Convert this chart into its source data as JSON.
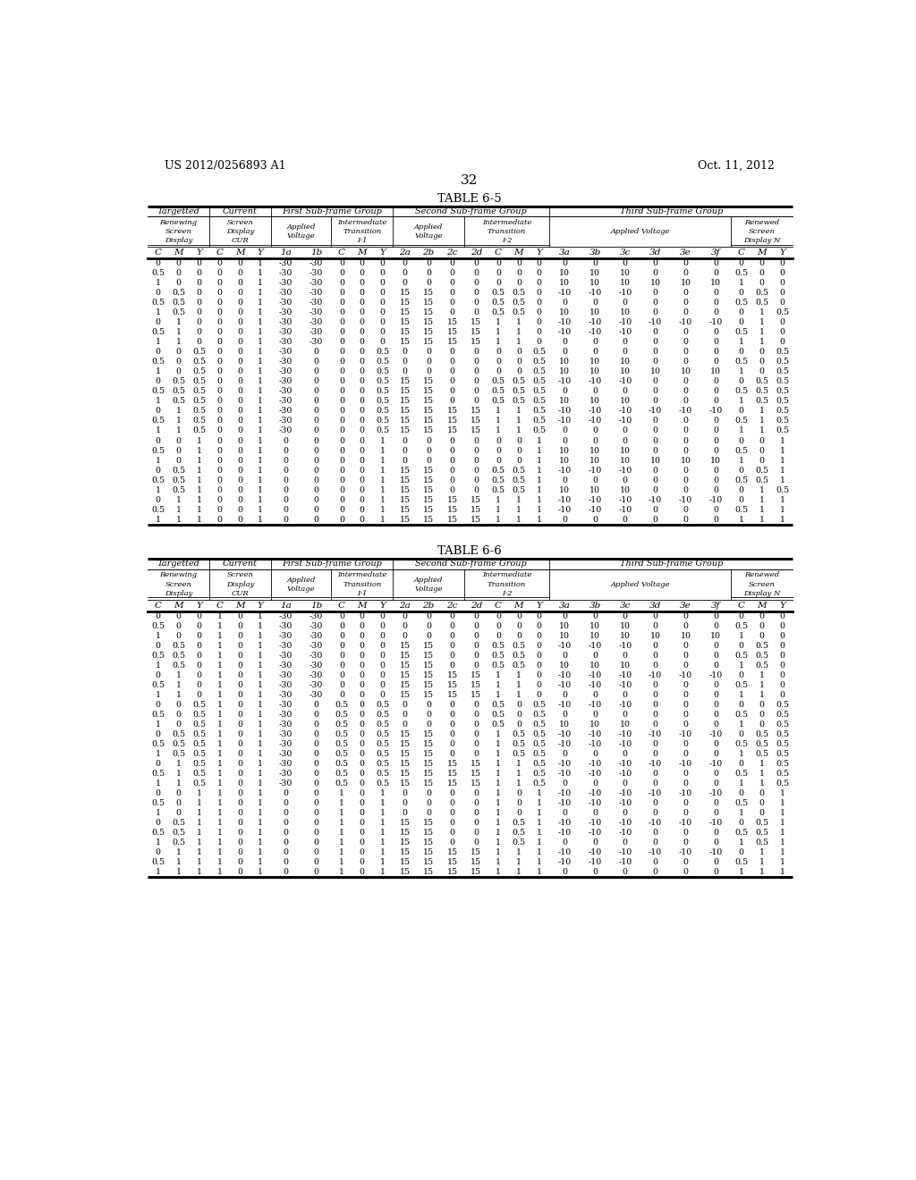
{
  "page_header_left": "US 2012/0256893 A1",
  "page_header_right": "Oct. 11, 2012",
  "page_number": "32",
  "table1_title": "TABLE 6-5",
  "table2_title": "TABLE 6-6",
  "col_names": [
    "C",
    "M",
    "Y",
    "C",
    "M",
    "Y",
    "1a",
    "1b",
    "C",
    "M",
    "Y",
    "2a",
    "2b",
    "2c",
    "2d",
    "C",
    "M",
    "Y",
    "3a",
    "3b",
    "3c",
    "3d",
    "3e",
    "3f",
    "C",
    "M",
    "Y"
  ],
  "table1_data": [
    [
      "0",
      "0",
      "0",
      "0",
      "0",
      "1",
      "-30",
      "-30",
      "0",
      "0",
      "0",
      "0",
      "0",
      "0",
      "0",
      "0",
      "0",
      "0",
      "0",
      "0",
      "0",
      "0",
      "0",
      "0",
      "0",
      "0",
      "0"
    ],
    [
      "0.5",
      "0",
      "0",
      "0",
      "0",
      "1",
      "-30",
      "-30",
      "0",
      "0",
      "0",
      "0",
      "0",
      "0",
      "0",
      "0",
      "0",
      "0",
      "10",
      "10",
      "10",
      "0",
      "0",
      "0",
      "0.5",
      "0",
      "0"
    ],
    [
      "1",
      "0",
      "0",
      "0",
      "0",
      "1",
      "-30",
      "-30",
      "0",
      "0",
      "0",
      "0",
      "0",
      "0",
      "0",
      "0",
      "0",
      "0",
      "10",
      "10",
      "10",
      "10",
      "10",
      "10",
      "1",
      "0",
      "0"
    ],
    [
      "0",
      "0.5",
      "0",
      "0",
      "0",
      "1",
      "-30",
      "-30",
      "0",
      "0",
      "0",
      "15",
      "15",
      "0",
      "0",
      "0.5",
      "0.5",
      "0",
      "-10",
      "-10",
      "-10",
      "0",
      "0",
      "0",
      "0",
      "0.5",
      "0"
    ],
    [
      "0.5",
      "0.5",
      "0",
      "0",
      "0",
      "1",
      "-30",
      "-30",
      "0",
      "0",
      "0",
      "15",
      "15",
      "0",
      "0",
      "0.5",
      "0.5",
      "0",
      "0",
      "0",
      "0",
      "0",
      "0",
      "0",
      "0.5",
      "0.5",
      "0"
    ],
    [
      "1",
      "0.5",
      "0",
      "0",
      "0",
      "1",
      "-30",
      "-30",
      "0",
      "0",
      "0",
      "15",
      "15",
      "0",
      "0",
      "0.5",
      "0.5",
      "0",
      "10",
      "10",
      "10",
      "0",
      "0",
      "0",
      "0",
      "1",
      "0.5"
    ],
    [
      "0",
      "1",
      "0",
      "0",
      "0",
      "1",
      "-30",
      "-30",
      "0",
      "0",
      "0",
      "15",
      "15",
      "15",
      "15",
      "1",
      "1",
      "0",
      "-10",
      "-10",
      "-10",
      "-10",
      "-10",
      "-10",
      "0",
      "1",
      "0"
    ],
    [
      "0.5",
      "1",
      "0",
      "0",
      "0",
      "1",
      "-30",
      "-30",
      "0",
      "0",
      "0",
      "15",
      "15",
      "15",
      "15",
      "1",
      "1",
      "0",
      "-10",
      "-10",
      "-10",
      "0",
      "0",
      "0",
      "0.5",
      "1",
      "0"
    ],
    [
      "1",
      "1",
      "0",
      "0",
      "0",
      "1",
      "-30",
      "-30",
      "0",
      "0",
      "0",
      "15",
      "15",
      "15",
      "15",
      "1",
      "1",
      "0",
      "0",
      "0",
      "0",
      "0",
      "0",
      "0",
      "1",
      "1",
      "0"
    ],
    [
      "0",
      "0",
      "0.5",
      "0",
      "0",
      "1",
      "-30",
      "0",
      "0",
      "0",
      "0.5",
      "0",
      "0",
      "0",
      "0",
      "0",
      "0",
      "0.5",
      "0",
      "0",
      "0",
      "0",
      "0",
      "0",
      "0",
      "0",
      "0.5"
    ],
    [
      "0.5",
      "0",
      "0.5",
      "0",
      "0",
      "1",
      "-30",
      "0",
      "0",
      "0",
      "0.5",
      "0",
      "0",
      "0",
      "0",
      "0",
      "0",
      "0.5",
      "10",
      "10",
      "10",
      "0",
      "0",
      "0",
      "0.5",
      "0",
      "0.5"
    ],
    [
      "1",
      "0",
      "0.5",
      "0",
      "0",
      "1",
      "-30",
      "0",
      "0",
      "0",
      "0.5",
      "0",
      "0",
      "0",
      "0",
      "0",
      "0",
      "0.5",
      "10",
      "10",
      "10",
      "10",
      "10",
      "10",
      "1",
      "0",
      "0.5"
    ],
    [
      "0",
      "0.5",
      "0.5",
      "0",
      "0",
      "1",
      "-30",
      "0",
      "0",
      "0",
      "0.5",
      "15",
      "15",
      "0",
      "0",
      "0.5",
      "0.5",
      "0.5",
      "-10",
      "-10",
      "-10",
      "0",
      "0",
      "0",
      "0",
      "0.5",
      "0.5"
    ],
    [
      "0.5",
      "0.5",
      "0.5",
      "0",
      "0",
      "1",
      "-30",
      "0",
      "0",
      "0",
      "0.5",
      "15",
      "15",
      "0",
      "0",
      "0.5",
      "0.5",
      "0.5",
      "0",
      "0",
      "0",
      "0",
      "0",
      "0",
      "0.5",
      "0.5",
      "0.5"
    ],
    [
      "1",
      "0.5",
      "0.5",
      "0",
      "0",
      "1",
      "-30",
      "0",
      "0",
      "0",
      "0.5",
      "15",
      "15",
      "0",
      "0",
      "0.5",
      "0.5",
      "0.5",
      "10",
      "10",
      "10",
      "0",
      "0",
      "0",
      "1",
      "0.5",
      "0.5"
    ],
    [
      "0",
      "1",
      "0.5",
      "0",
      "0",
      "1",
      "-30",
      "0",
      "0",
      "0",
      "0.5",
      "15",
      "15",
      "15",
      "15",
      "1",
      "1",
      "0.5",
      "-10",
      "-10",
      "-10",
      "-10",
      "-10",
      "-10",
      "0",
      "1",
      "0.5"
    ],
    [
      "0.5",
      "1",
      "0.5",
      "0",
      "0",
      "1",
      "-30",
      "0",
      "0",
      "0",
      "0.5",
      "15",
      "15",
      "15",
      "15",
      "1",
      "1",
      "0.5",
      "-10",
      "-10",
      "-10",
      "0",
      "0",
      "0",
      "0.5",
      "1",
      "0.5"
    ],
    [
      "1",
      "1",
      "0.5",
      "0",
      "0",
      "1",
      "-30",
      "0",
      "0",
      "0",
      "0.5",
      "15",
      "15",
      "15",
      "15",
      "1",
      "1",
      "0.5",
      "0",
      "0",
      "0",
      "0",
      "0",
      "0",
      "1",
      "1",
      "0.5"
    ],
    [
      "0",
      "0",
      "1",
      "0",
      "0",
      "1",
      "0",
      "0",
      "0",
      "0",
      "1",
      "0",
      "0",
      "0",
      "0",
      "0",
      "0",
      "1",
      "0",
      "0",
      "0",
      "0",
      "0",
      "0",
      "0",
      "0",
      "1"
    ],
    [
      "0.5",
      "0",
      "1",
      "0",
      "0",
      "1",
      "0",
      "0",
      "0",
      "0",
      "1",
      "0",
      "0",
      "0",
      "0",
      "0",
      "0",
      "1",
      "10",
      "10",
      "10",
      "0",
      "0",
      "0",
      "0.5",
      "0",
      "1"
    ],
    [
      "1",
      "0",
      "1",
      "0",
      "0",
      "1",
      "0",
      "0",
      "0",
      "0",
      "1",
      "0",
      "0",
      "0",
      "0",
      "0",
      "0",
      "1",
      "10",
      "10",
      "10",
      "10",
      "10",
      "10",
      "1",
      "0",
      "1"
    ],
    [
      "0",
      "0.5",
      "1",
      "0",
      "0",
      "1",
      "0",
      "0",
      "0",
      "0",
      "1",
      "15",
      "15",
      "0",
      "0",
      "0.5",
      "0.5",
      "1",
      "-10",
      "-10",
      "-10",
      "0",
      "0",
      "0",
      "0",
      "0.5",
      "1"
    ],
    [
      "0.5",
      "0.5",
      "1",
      "0",
      "0",
      "1",
      "0",
      "0",
      "0",
      "0",
      "1",
      "15",
      "15",
      "0",
      "0",
      "0.5",
      "0.5",
      "1",
      "0",
      "0",
      "0",
      "0",
      "0",
      "0",
      "0.5",
      "0.5",
      "1"
    ],
    [
      "1",
      "0.5",
      "1",
      "0",
      "0",
      "1",
      "0",
      "0",
      "0",
      "0",
      "1",
      "15",
      "15",
      "0",
      "0",
      "0.5",
      "0.5",
      "1",
      "10",
      "10",
      "10",
      "0",
      "0",
      "0",
      "0",
      "1",
      "0.5"
    ],
    [
      "0",
      "1",
      "1",
      "0",
      "0",
      "1",
      "0",
      "0",
      "0",
      "0",
      "1",
      "15",
      "15",
      "15",
      "15",
      "1",
      "1",
      "1",
      "-10",
      "-10",
      "-10",
      "-10",
      "-10",
      "-10",
      "0",
      "1",
      "1"
    ],
    [
      "0.5",
      "1",
      "1",
      "0",
      "0",
      "1",
      "0",
      "0",
      "0",
      "0",
      "1",
      "15",
      "15",
      "15",
      "15",
      "1",
      "1",
      "1",
      "-10",
      "-10",
      "-10",
      "0",
      "0",
      "0",
      "0.5",
      "1",
      "1"
    ],
    [
      "1",
      "1",
      "1",
      "0",
      "0",
      "1",
      "0",
      "0",
      "0",
      "0",
      "1",
      "15",
      "15",
      "15",
      "15",
      "1",
      "1",
      "1",
      "0",
      "0",
      "0",
      "0",
      "0",
      "0",
      "1",
      "1",
      "1"
    ]
  ],
  "table2_data": [
    [
      "0",
      "0",
      "0",
      "1",
      "0",
      "1",
      "-30",
      "-30",
      "0",
      "0",
      "0",
      "0",
      "0",
      "0",
      "0",
      "0",
      "0",
      "0",
      "0",
      "0",
      "0",
      "0",
      "0",
      "0",
      "0",
      "0",
      "0"
    ],
    [
      "0.5",
      "0",
      "0",
      "1",
      "0",
      "1",
      "-30",
      "-30",
      "0",
      "0",
      "0",
      "0",
      "0",
      "0",
      "0",
      "0",
      "0",
      "0",
      "10",
      "10",
      "10",
      "0",
      "0",
      "0",
      "0.5",
      "0",
      "0"
    ],
    [
      "1",
      "0",
      "0",
      "1",
      "0",
      "1",
      "-30",
      "-30",
      "0",
      "0",
      "0",
      "0",
      "0",
      "0",
      "0",
      "0",
      "0",
      "0",
      "10",
      "10",
      "10",
      "10",
      "10",
      "10",
      "1",
      "0",
      "0"
    ],
    [
      "0",
      "0.5",
      "0",
      "1",
      "0",
      "1",
      "-30",
      "-30",
      "0",
      "0",
      "0",
      "15",
      "15",
      "0",
      "0",
      "0.5",
      "0.5",
      "0",
      "-10",
      "-10",
      "-10",
      "0",
      "0",
      "0",
      "0",
      "0.5",
      "0"
    ],
    [
      "0.5",
      "0.5",
      "0",
      "1",
      "0",
      "1",
      "-30",
      "-30",
      "0",
      "0",
      "0",
      "15",
      "15",
      "0",
      "0",
      "0.5",
      "0.5",
      "0",
      "0",
      "0",
      "0",
      "0",
      "0",
      "0",
      "0.5",
      "0.5",
      "0"
    ],
    [
      "1",
      "0.5",
      "0",
      "1",
      "0",
      "1",
      "-30",
      "-30",
      "0",
      "0",
      "0",
      "15",
      "15",
      "0",
      "0",
      "0.5",
      "0.5",
      "0",
      "10",
      "10",
      "10",
      "0",
      "0",
      "0",
      "1",
      "0.5",
      "0"
    ],
    [
      "0",
      "1",
      "0",
      "1",
      "0",
      "1",
      "-30",
      "-30",
      "0",
      "0",
      "0",
      "15",
      "15",
      "15",
      "15",
      "1",
      "1",
      "0",
      "-10",
      "-10",
      "-10",
      "-10",
      "-10",
      "-10",
      "0",
      "1",
      "0"
    ],
    [
      "0.5",
      "1",
      "0",
      "1",
      "0",
      "1",
      "-30",
      "-30",
      "0",
      "0",
      "0",
      "15",
      "15",
      "15",
      "15",
      "1",
      "1",
      "0",
      "-10",
      "-10",
      "-10",
      "0",
      "0",
      "0",
      "0.5",
      "1",
      "0"
    ],
    [
      "1",
      "1",
      "0",
      "1",
      "0",
      "1",
      "-30",
      "-30",
      "0",
      "0",
      "0",
      "15",
      "15",
      "15",
      "15",
      "1",
      "1",
      "0",
      "0",
      "0",
      "0",
      "0",
      "0",
      "0",
      "1",
      "1",
      "0"
    ],
    [
      "0",
      "0",
      "0.5",
      "1",
      "0",
      "1",
      "-30",
      "0",
      "0.5",
      "0",
      "0.5",
      "0",
      "0",
      "0",
      "0",
      "0.5",
      "0",
      "0.5",
      "-10",
      "-10",
      "-10",
      "0",
      "0",
      "0",
      "0",
      "0",
      "0.5"
    ],
    [
      "0.5",
      "0",
      "0.5",
      "1",
      "0",
      "1",
      "-30",
      "0",
      "0.5",
      "0",
      "0.5",
      "0",
      "0",
      "0",
      "0",
      "0.5",
      "0",
      "0.5",
      "0",
      "0",
      "0",
      "0",
      "0",
      "0",
      "0.5",
      "0",
      "0.5"
    ],
    [
      "1",
      "0",
      "0.5",
      "1",
      "0",
      "1",
      "-30",
      "0",
      "0.5",
      "0",
      "0.5",
      "0",
      "0",
      "0",
      "0",
      "0.5",
      "0",
      "0.5",
      "10",
      "10",
      "10",
      "0",
      "0",
      "0",
      "1",
      "0",
      "0.5"
    ],
    [
      "0",
      "0.5",
      "0.5",
      "1",
      "0",
      "1",
      "-30",
      "0",
      "0.5",
      "0",
      "0.5",
      "15",
      "15",
      "0",
      "0",
      "1",
      "0.5",
      "0.5",
      "-10",
      "-10",
      "-10",
      "-10",
      "-10",
      "-10",
      "0",
      "0.5",
      "0.5"
    ],
    [
      "0.5",
      "0.5",
      "0.5",
      "1",
      "0",
      "1",
      "-30",
      "0",
      "0.5",
      "0",
      "0.5",
      "15",
      "15",
      "0",
      "0",
      "1",
      "0.5",
      "0.5",
      "-10",
      "-10",
      "-10",
      "0",
      "0",
      "0",
      "0.5",
      "0.5",
      "0.5"
    ],
    [
      "1",
      "0.5",
      "0.5",
      "1",
      "0",
      "1",
      "-30",
      "0",
      "0.5",
      "0",
      "0.5",
      "15",
      "15",
      "0",
      "0",
      "1",
      "0.5",
      "0.5",
      "0",
      "0",
      "0",
      "0",
      "0",
      "0",
      "1",
      "0.5",
      "0.5"
    ],
    [
      "0",
      "1",
      "0.5",
      "1",
      "0",
      "1",
      "-30",
      "0",
      "0.5",
      "0",
      "0.5",
      "15",
      "15",
      "15",
      "15",
      "1",
      "1",
      "0.5",
      "-10",
      "-10",
      "-10",
      "-10",
      "-10",
      "-10",
      "0",
      "1",
      "0.5"
    ],
    [
      "0.5",
      "1",
      "0.5",
      "1",
      "0",
      "1",
      "-30",
      "0",
      "0.5",
      "0",
      "0.5",
      "15",
      "15",
      "15",
      "15",
      "1",
      "1",
      "0.5",
      "-10",
      "-10",
      "-10",
      "0",
      "0",
      "0",
      "0.5",
      "1",
      "0.5"
    ],
    [
      "1",
      "1",
      "0.5",
      "1",
      "0",
      "1",
      "-30",
      "0",
      "0.5",
      "0",
      "0.5",
      "15",
      "15",
      "15",
      "15",
      "1",
      "1",
      "0.5",
      "0",
      "0",
      "0",
      "0",
      "0",
      "0",
      "1",
      "1",
      "0.5"
    ],
    [
      "0",
      "0",
      "1",
      "1",
      "0",
      "1",
      "0",
      "0",
      "1",
      "0",
      "1",
      "0",
      "0",
      "0",
      "0",
      "1",
      "0",
      "1",
      "-10",
      "-10",
      "-10",
      "-10",
      "-10",
      "-10",
      "0",
      "0",
      "1"
    ],
    [
      "0.5",
      "0",
      "1",
      "1",
      "0",
      "1",
      "0",
      "0",
      "1",
      "0",
      "1",
      "0",
      "0",
      "0",
      "0",
      "1",
      "0",
      "1",
      "-10",
      "-10",
      "-10",
      "0",
      "0",
      "0",
      "0.5",
      "0",
      "1"
    ],
    [
      "1",
      "0",
      "1",
      "1",
      "0",
      "1",
      "0",
      "0",
      "1",
      "0",
      "1",
      "0",
      "0",
      "0",
      "0",
      "1",
      "0",
      "1",
      "0",
      "0",
      "0",
      "0",
      "0",
      "0",
      "1",
      "0",
      "1"
    ],
    [
      "0",
      "0.5",
      "1",
      "1",
      "0",
      "1",
      "0",
      "0",
      "1",
      "0",
      "1",
      "15",
      "15",
      "0",
      "0",
      "1",
      "0.5",
      "1",
      "-10",
      "-10",
      "-10",
      "-10",
      "-10",
      "-10",
      "0",
      "0.5",
      "1"
    ],
    [
      "0.5",
      "0.5",
      "1",
      "1",
      "0",
      "1",
      "0",
      "0",
      "1",
      "0",
      "1",
      "15",
      "15",
      "0",
      "0",
      "1",
      "0.5",
      "1",
      "-10",
      "-10",
      "-10",
      "0",
      "0",
      "0",
      "0.5",
      "0.5",
      "1"
    ],
    [
      "1",
      "0.5",
      "1",
      "1",
      "0",
      "1",
      "0",
      "0",
      "1",
      "0",
      "1",
      "15",
      "15",
      "0",
      "0",
      "1",
      "0.5",
      "1",
      "0",
      "0",
      "0",
      "0",
      "0",
      "0",
      "1",
      "0.5",
      "1"
    ],
    [
      "0",
      "1",
      "1",
      "1",
      "0",
      "1",
      "0",
      "0",
      "1",
      "0",
      "1",
      "15",
      "15",
      "15",
      "15",
      "1",
      "1",
      "1",
      "-10",
      "-10",
      "-10",
      "-10",
      "-10",
      "-10",
      "0",
      "1",
      "1"
    ],
    [
      "0.5",
      "1",
      "1",
      "1",
      "0",
      "1",
      "0",
      "0",
      "1",
      "0",
      "1",
      "15",
      "15",
      "15",
      "15",
      "1",
      "1",
      "1",
      "-10",
      "-10",
      "-10",
      "0",
      "0",
      "0",
      "0.5",
      "1",
      "1"
    ],
    [
      "1",
      "1",
      "1",
      "1",
      "0",
      "1",
      "0",
      "0",
      "1",
      "0",
      "1",
      "15",
      "15",
      "15",
      "15",
      "1",
      "1",
      "1",
      "0",
      "0",
      "0",
      "0",
      "0",
      "0",
      "1",
      "1",
      "1"
    ]
  ],
  "background_color": "#ffffff",
  "text_color": "#000000",
  "fs_data": 6.8,
  "fs_header": 7.5,
  "fs_title": 9.5,
  "fs_page": 9.0
}
